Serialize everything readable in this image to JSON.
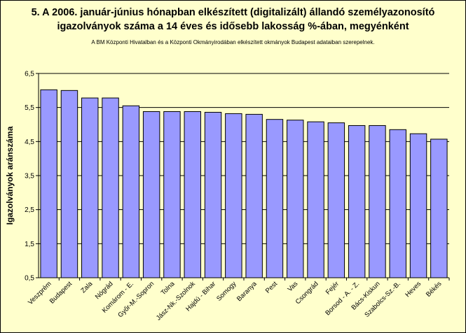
{
  "title_line1": "5. A 2006. január-június hónapban elkészített (digitalizált) állandó személyazonosító",
  "title_line2": "igazolványok száma a 14 éves és idősebb lakosság %-ában, megyénként",
  "subtitle": "A BM Központi Hivatalban és a Központi Okmányirodában elkészített okmányok Budapest adataiban szerepelnek.",
  "colors": {
    "background": "#ffffcc",
    "bar": "#9999ff",
    "bar_border": "#000000"
  },
  "chart_data": {
    "type": "bar",
    "ylabel": "Igazolványok aránszáma",
    "ylim": [
      0.5,
      6.5
    ],
    "yticks": [
      "0,5",
      "1,5",
      "2,5",
      "3,5",
      "4,5",
      "5,5",
      "6,5"
    ],
    "ytick_values": [
      0.5,
      1.5,
      2.5,
      3.5,
      4.5,
      5.5,
      6.5
    ],
    "grid": true,
    "categories": [
      "Veszprém",
      "Budapest",
      "Zala",
      "Nógrád",
      "Komárom - E.",
      "Győr-M.-Sopron",
      "Tolna",
      "Jász-Nk.-Szolnok",
      "Hajdú - Bihar",
      "Somogy",
      "Baranya",
      "Pest",
      "Vas",
      "Csongrád",
      "Fejér",
      "Borsod - A. - Z.",
      "Bács-Kiskun",
      "Szabolcs-Sz.-B.",
      "Heves",
      "Békés"
    ],
    "values": [
      6.02,
      6.0,
      5.78,
      5.78,
      5.55,
      5.38,
      5.38,
      5.38,
      5.36,
      5.32,
      5.3,
      5.15,
      5.13,
      5.08,
      5.05,
      4.97,
      4.97,
      4.85,
      4.73,
      4.57
    ]
  }
}
